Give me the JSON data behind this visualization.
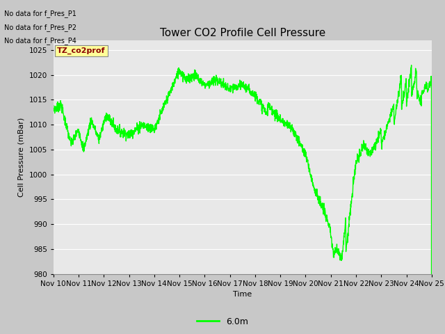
{
  "title": "Tower CO2 Profile Cell Pressure",
  "xlabel": "Time",
  "ylabel": "Cell Pressure (mBar)",
  "ylim": [
    980,
    1027
  ],
  "yticks": [
    980,
    985,
    990,
    995,
    1000,
    1005,
    1010,
    1015,
    1020,
    1025
  ],
  "xtick_labels": [
    "Nov 10",
    "Nov 11",
    "Nov 12",
    "Nov 13",
    "Nov 14",
    "Nov 15",
    "Nov 16",
    "Nov 17",
    "Nov 18",
    "Nov 19",
    "Nov 20",
    "Nov 21",
    "Nov 22",
    "Nov 23",
    "Nov 24",
    "Nov 25"
  ],
  "line_color": "#00ff00",
  "line_label": "6.0m",
  "legend_labels_nodata": [
    "No data for f_Pres_P1",
    "No data for f_Pres_P2",
    "No data for f_Pres_P4"
  ],
  "annotation_label": "TZ_co2prof",
  "fig_bg_color": "#c8c8c8",
  "plot_bg_color": "#e8e8e8",
  "grid_color": "#ffffff",
  "title_fontsize": 11,
  "axis_fontsize": 8,
  "tick_fontsize": 7.5
}
